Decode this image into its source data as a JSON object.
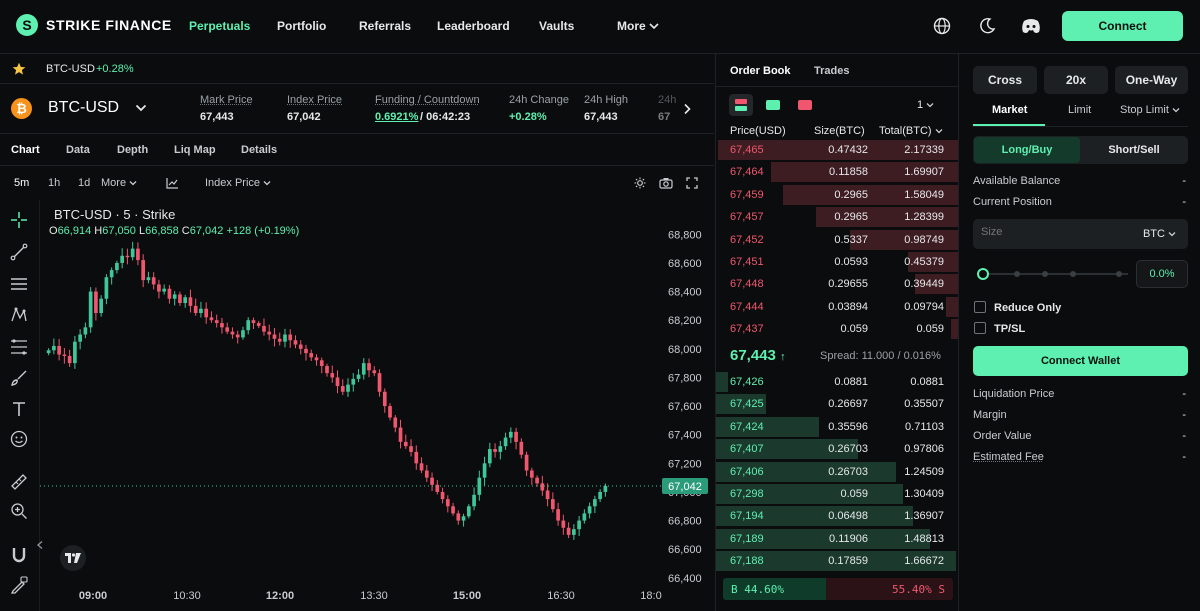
{
  "brand": {
    "name": "STRIKE FINANCE",
    "logo_letter": "S"
  },
  "nav": {
    "items": [
      {
        "label": "Perpetuals",
        "active": true
      },
      {
        "label": "Portfolio"
      },
      {
        "label": "Referrals"
      },
      {
        "label": "Leaderboard"
      },
      {
        "label": "Vaults"
      },
      {
        "label": "More"
      }
    ],
    "connect_label": "Connect",
    "accent": "#5ef0b0"
  },
  "ticker": {
    "symbol": "BTC-USD",
    "change": "+0.28%"
  },
  "market": {
    "symbol": "BTC-USD",
    "stats": [
      {
        "label": "Mark Price",
        "value": "67,443"
      },
      {
        "label": "Index Price",
        "value": "67,042"
      },
      {
        "label": "Funding / Countdown",
        "value_a": "0.6921%",
        "value_b": "/ 06:42:23"
      },
      {
        "label": "24h Change",
        "value": "+0.28%"
      },
      {
        "label": "24h High",
        "value": "67,443"
      },
      {
        "label": "24h",
        "value": "67"
      }
    ]
  },
  "chart_tabs": [
    "Chart",
    "Data",
    "Depth",
    "Liq Map",
    "Details"
  ],
  "toolbar": {
    "intervals": [
      "5m",
      "1h",
      "1d"
    ],
    "more": "More",
    "price_type": "Index Price"
  },
  "chart_data": {
    "type": "candlestick",
    "title": "BTC-USD · 5 · Strike",
    "ohlc_legend": {
      "o_label": "O",
      "o": "66,914",
      "h_label": "H",
      "h": "67,050",
      "l_label": "L",
      "l": "66,858",
      "c_label": "C",
      "c": "67,042",
      "change": "+128 (+0.19%)"
    },
    "ylim": [
      66350,
      68900
    ],
    "y_ticks": [
      "68,800",
      "68,600",
      "68,400",
      "68,200",
      "68,000",
      "67,800",
      "67,600",
      "67,400",
      "67,200",
      "67,000",
      "66,800",
      "66,600",
      "66,400"
    ],
    "x_ticks": [
      "09:00",
      "10:30",
      "12:00",
      "13:30",
      "15:00",
      "16:30",
      "18:0"
    ],
    "last_price_label": "67,042",
    "last_price": 67042,
    "closes": [
      67990,
      68020,
      67960,
      67950,
      67900,
      68050,
      68100,
      68150,
      68400,
      68250,
      68350,
      68500,
      68550,
      68600,
      68650,
      68640,
      68700,
      68620,
      68480,
      68500,
      68450,
      68400,
      68420,
      68350,
      68380,
      68320,
      68360,
      68300,
      68250,
      68280,
      68220,
      68200,
      68180,
      68150,
      68120,
      68100,
      68080,
      68130,
      68200,
      68180,
      68160,
      68120,
      68100,
      68070,
      68050,
      68100,
      68060,
      68030,
      68000,
      67970,
      67940,
      67920,
      67880,
      67830,
      67800,
      67740,
      67700,
      67750,
      67790,
      67820,
      67900,
      67850,
      67830,
      67700,
      67600,
      67520,
      67450,
      67350,
      67320,
      67280,
      67200,
      67150,
      67100,
      67050,
      67000,
      66950,
      66900,
      66850,
      66800,
      66830,
      66900,
      66980,
      67100,
      67200,
      67300,
      67280,
      67320,
      67380,
      67420,
      67350,
      67260,
      67150,
      67100,
      67060,
      67010,
      66950,
      66880,
      66800,
      66750,
      66700,
      66740,
      66800,
      66850,
      66900,
      66950,
      67000,
      67042
    ]
  },
  "orderbook": {
    "tabs": [
      "Order Book",
      "Trades"
    ],
    "precision": "1",
    "headers": {
      "price": "Price(USD)",
      "size": "Size(BTC)",
      "total": "Total(BTC)"
    },
    "asks": [
      {
        "price": "67,465",
        "size": "0.47432",
        "total": "2.17339",
        "depth": 1.0
      },
      {
        "price": "67,464",
        "size": "0.11858",
        "total": "1.69907",
        "depth": 0.78
      },
      {
        "price": "67,459",
        "size": "0.2965",
        "total": "1.58049",
        "depth": 0.73
      },
      {
        "price": "67,457",
        "size": "0.2965",
        "total": "1.28399",
        "depth": 0.59
      },
      {
        "price": "67,452",
        "size": "0.5337",
        "total": "0.98749",
        "depth": 0.45
      },
      {
        "price": "67,451",
        "size": "0.0593",
        "total": "0.45379",
        "depth": 0.21
      },
      {
        "price": "67,448",
        "size": "0.29655",
        "total": "0.39449",
        "depth": 0.18
      },
      {
        "price": "67,444",
        "size": "0.03894",
        "total": "0.09794",
        "depth": 0.05
      },
      {
        "price": "67,437",
        "size": "0.059",
        "total": "0.059",
        "depth": 0.03
      }
    ],
    "mid_price": "67,443",
    "spread": "Spread: 11.000 / 0.016%",
    "bids": [
      {
        "price": "67,426",
        "size": "0.0881",
        "total": "0.0881",
        "depth": 0.05
      },
      {
        "price": "67,425",
        "size": "0.26697",
        "total": "0.35507",
        "depth": 0.21
      },
      {
        "price": "67,424",
        "size": "0.35596",
        "total": "0.71103",
        "depth": 0.43
      },
      {
        "price": "67,407",
        "size": "0.26703",
        "total": "0.97806",
        "depth": 0.59
      },
      {
        "price": "67,406",
        "size": "0.26703",
        "total": "1.24509",
        "depth": 0.75
      },
      {
        "price": "67,298",
        "size": "0.059",
        "total": "1.30409",
        "depth": 0.78
      },
      {
        "price": "67,194",
        "size": "0.06498",
        "total": "1.36907",
        "depth": 0.82
      },
      {
        "price": "67,189",
        "size": "0.11906",
        "total": "1.48813",
        "depth": 0.89
      },
      {
        "price": "67,188",
        "size": "0.17859",
        "total": "1.66672",
        "depth": 1.0
      }
    ],
    "buy_label": "B",
    "buy_pct": "44.60%",
    "sell_pct": "55.40%",
    "sell_label": "S",
    "buy_ratio": 0.446
  },
  "trade": {
    "margin_mode": "Cross",
    "leverage": "20x",
    "position_mode": "One-Way",
    "order_types": [
      "Market",
      "Limit",
      "Stop Limit"
    ],
    "sides": [
      "Long/Buy",
      "Short/Sell"
    ],
    "available_balance": {
      "label": "Available Balance",
      "value": "-"
    },
    "current_position": {
      "label": "Current Position",
      "value": "-"
    },
    "size_placeholder": "Size",
    "size_unit": "BTC",
    "slider_value": "0.0%",
    "reduce_only": "Reduce Only",
    "tpsl": "TP/SL",
    "connect_wallet": "Connect Wallet",
    "info": [
      {
        "label": "Liquidation Price",
        "value": "-"
      },
      {
        "label": "Margin",
        "value": "-"
      },
      {
        "label": "Order Value",
        "value": "-"
      },
      {
        "label": "Estimated Fee",
        "value": "-"
      }
    ]
  }
}
